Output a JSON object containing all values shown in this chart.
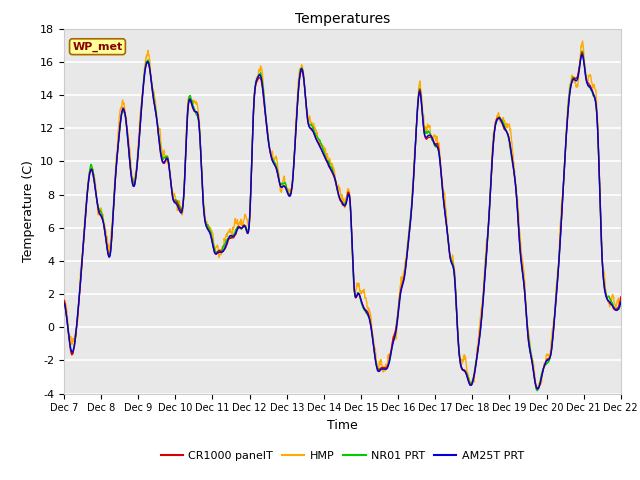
{
  "title": "Temperatures",
  "xlabel": "Time",
  "ylabel": "Temperature (C)",
  "ylim": [
    -4,
    18
  ],
  "fig_bg_color": "#ffffff",
  "plot_bg_color": "#e8e8e8",
  "grid_color": "#ffffff",
  "annotation_text": "WP_met",
  "annotation_bg": "#ffff99",
  "annotation_border": "#aa6600",
  "annotation_text_color": "#880000",
  "legend_entries": [
    "CR1000 panelT",
    "HMP",
    "NR01 PRT",
    "AM25T PRT"
  ],
  "line_colors": [
    "#dd0000",
    "#ffaa00",
    "#00cc00",
    "#0000dd"
  ],
  "x_tick_labels": [
    "Dec 7",
    "Dec 8",
    "Dec 9",
    "Dec 10",
    "Dec 11",
    "Dec 12",
    "Dec 13",
    "Dec 14",
    "Dec 15",
    "Dec 16",
    "Dec 17",
    "Dec 18",
    "Dec 19",
    "Dec 20",
    "Dec 21",
    "Dec 22"
  ],
  "yticks": [
    -4,
    -2,
    0,
    2,
    4,
    6,
    8,
    10,
    12,
    14,
    16,
    18
  ],
  "base_signal": [
    1.5,
    0.0,
    -1.5,
    -0.5,
    2.0,
    5.0,
    8.0,
    9.5,
    8.5,
    7.0,
    6.5,
    5.0,
    4.5,
    8.0,
    11.0,
    13.0,
    12.5,
    10.0,
    8.5,
    10.0,
    13.0,
    15.5,
    15.8,
    14.0,
    12.5,
    10.5,
    10.0,
    10.0,
    8.0,
    7.5,
    7.0,
    8.0,
    13.0,
    13.5,
    13.0,
    12.0,
    7.5,
    6.0,
    5.5,
    4.5,
    4.5,
    4.5,
    5.0,
    5.5,
    5.5,
    6.0,
    6.0,
    6.0,
    6.5,
    13.0,
    15.0,
    15.0,
    13.0,
    11.0,
    10.0,
    9.5,
    8.5,
    8.5,
    8.0,
    8.5,
    12.0,
    15.2,
    15.0,
    12.5,
    12.0,
    11.5,
    11.0,
    10.5,
    10.0,
    9.5,
    9.0,
    8.0,
    7.5,
    7.5,
    7.5,
    2.5,
    2.0,
    1.5,
    1.0,
    0.5,
    -1.0,
    -2.5,
    -2.5,
    -2.5,
    -2.2,
    -1.0,
    0.0,
    2.0,
    3.0,
    5.0,
    7.5,
    11.5,
    14.2,
    12.0,
    11.5,
    11.5,
    11.0,
    10.5,
    8.0,
    6.0,
    4.0,
    3.0,
    -1.0,
    -2.5,
    -2.8,
    -3.5,
    -3.0,
    -1.5,
    0.5,
    3.5,
    7.0,
    11.0,
    12.5,
    12.5,
    12.0,
    11.5,
    10.0,
    8.0,
    4.5,
    2.5,
    -0.5,
    -2.0,
    -3.5,
    -3.5,
    -2.5,
    -2.0,
    -1.5,
    1.0,
    4.0,
    8.0,
    12.0,
    14.5,
    15.0,
    15.2,
    16.5,
    15.0,
    14.5,
    14.0,
    12.0,
    5.0,
    2.0,
    1.5,
    1.2,
    1.0,
    1.5
  ]
}
